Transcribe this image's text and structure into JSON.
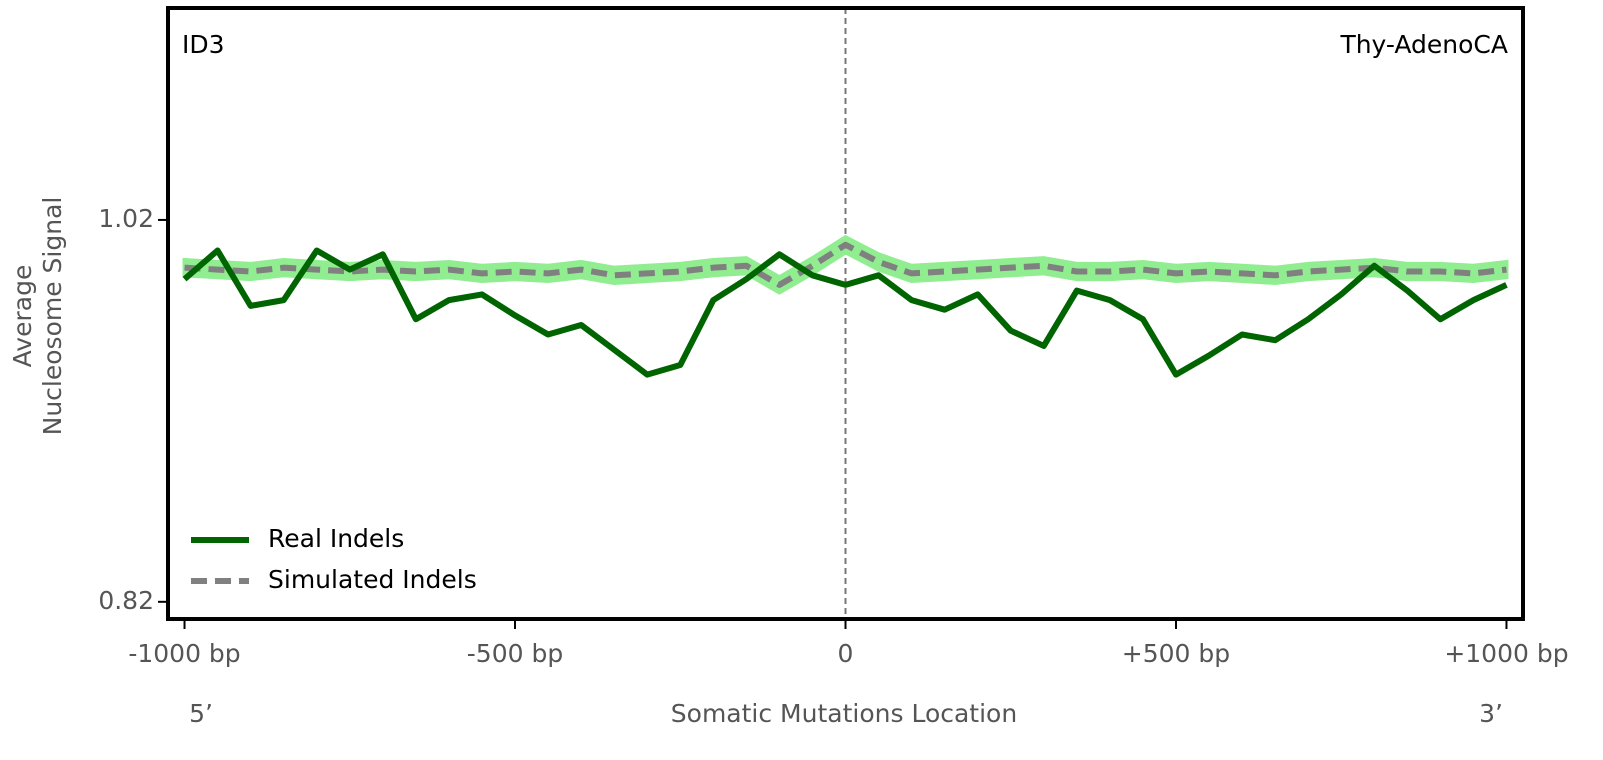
{
  "chart_data": {
    "type": "line",
    "panel_label": "ID3",
    "cancer_type": "Thy-AdenoCA",
    "ylabel": [
      "Average",
      "Nucleosome Signal"
    ],
    "xlabel": "Somatic Mutations Location",
    "five_prime": "5’",
    "three_prime": "3’",
    "x": [
      -1000,
      -950,
      -900,
      -850,
      -800,
      -750,
      -700,
      -650,
      -600,
      -550,
      -500,
      -450,
      -400,
      -350,
      -300,
      -250,
      -200,
      -150,
      -100,
      -50,
      0,
      50,
      100,
      150,
      200,
      250,
      300,
      350,
      400,
      450,
      500,
      550,
      600,
      650,
      700,
      750,
      800,
      850,
      900,
      950,
      1000
    ],
    "series": [
      {
        "name": "Real Indels",
        "color": "#006400",
        "style": "solid",
        "values": [
          0.989,
          1.004,
          0.975,
          0.978,
          1.004,
          0.994,
          1.002,
          0.968,
          0.978,
          0.981,
          0.97,
          0.96,
          0.965,
          0.952,
          0.939,
          0.944,
          0.978,
          0.989,
          1.002,
          0.991,
          0.986,
          0.991,
          0.978,
          0.973,
          0.981,
          0.962,
          0.954,
          0.983,
          0.978,
          0.968,
          0.939,
          0.949,
          0.96,
          0.957,
          0.968,
          0.981,
          0.996,
          0.983,
          0.968,
          0.978,
          0.986
        ]
      },
      {
        "name": "Simulated Indels",
        "color": "#808080",
        "style": "dashed",
        "band_color": "#90ee90",
        "values": [
          0.995,
          0.994,
          0.993,
          0.995,
          0.994,
          0.993,
          0.994,
          0.993,
          0.994,
          0.992,
          0.993,
          0.992,
          0.994,
          0.991,
          0.992,
          0.993,
          0.995,
          0.996,
          0.986,
          0.996,
          1.007,
          0.998,
          0.992,
          0.993,
          0.994,
          0.995,
          0.996,
          0.993,
          0.993,
          0.994,
          0.992,
          0.993,
          0.992,
          0.991,
          0.993,
          0.994,
          0.995,
          0.993,
          0.993,
          0.992,
          0.994
        ],
        "lower": [
          0.991,
          0.99,
          0.989,
          0.991,
          0.99,
          0.989,
          0.99,
          0.989,
          0.99,
          0.988,
          0.989,
          0.988,
          0.99,
          0.987,
          0.988,
          0.989,
          0.991,
          0.992,
          0.982,
          0.992,
          1.003,
          0.994,
          0.988,
          0.989,
          0.99,
          0.991,
          0.992,
          0.989,
          0.989,
          0.99,
          0.988,
          0.989,
          0.988,
          0.987,
          0.989,
          0.99,
          0.991,
          0.989,
          0.989,
          0.988,
          0.99
        ],
        "upper": [
          0.999,
          0.998,
          0.997,
          0.999,
          0.998,
          0.997,
          0.998,
          0.997,
          0.998,
          0.996,
          0.997,
          0.996,
          0.998,
          0.995,
          0.996,
          0.997,
          0.999,
          1.0,
          0.99,
          1.0,
          1.011,
          1.002,
          0.996,
          0.997,
          0.998,
          0.999,
          1.0,
          0.997,
          0.997,
          0.998,
          0.996,
          0.997,
          0.996,
          0.995,
          0.997,
          0.998,
          0.999,
          0.997,
          0.997,
          0.996,
          0.998
        ]
      }
    ],
    "xlim": [
      -1025,
      1025
    ],
    "ylim": [
      0.811,
      1.131
    ],
    "xticks": [
      {
        "value": -1000,
        "label": "-1000 bp"
      },
      {
        "value": -500,
        "label": "-500 bp"
      },
      0,
      {
        "value": 500,
        "label": "+500 bp"
      },
      {
        "value": 1000,
        "label": "+1000 bp"
      }
    ],
    "yticks": [
      0.82,
      1.02
    ],
    "legend": "lower left"
  }
}
